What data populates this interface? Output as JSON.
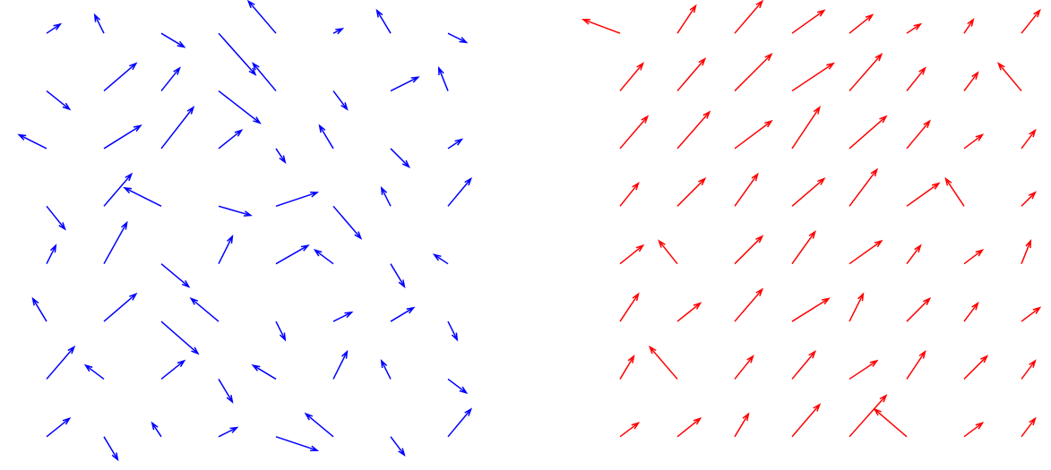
{
  "chart_data": [
    {
      "type": "quiver",
      "color": "#0000ff",
      "xlim": [
        0,
        8
      ],
      "ylim": [
        0,
        8
      ],
      "x": [
        0.5,
        1.5,
        2.5,
        3.5,
        4.5,
        5.5,
        6.5,
        7.5
      ],
      "y": [
        7.5,
        6.5,
        5.5,
        4.5,
        3.5,
        2.5,
        1.5,
        0.5
      ],
      "u": [
        [
          0.3,
          -0.2,
          0.5,
          0.8,
          -0.6,
          0.2,
          -0.3,
          0.4
        ],
        [
          0.5,
          0.7,
          0.4,
          0.9,
          -0.5,
          0.3,
          0.6,
          -0.2
        ],
        [
          -0.6,
          0.8,
          0.7,
          0.5,
          0.2,
          -0.3,
          0.4,
          0.3
        ],
        [
          0.4,
          0.6,
          -0.8,
          0.7,
          0.9,
          0.6,
          -0.2,
          0.5
        ],
        [
          0.2,
          0.5,
          0.6,
          0.3,
          0.7,
          -0.4,
          0.3,
          -0.3
        ],
        [
          -0.3,
          0.7,
          0.8,
          -0.6,
          0.2,
          0.4,
          0.5,
          0.2
        ],
        [
          0.6,
          -0.4,
          0.5,
          0.3,
          -0.5,
          0.3,
          -0.2,
          0.4
        ],
        [
          0.5,
          0.3,
          -0.2,
          0.4,
          0.9,
          -0.6,
          0.3,
          0.5
        ]
      ],
      "v": [
        [
          0.2,
          0.4,
          -0.3,
          -0.9,
          0.7,
          0.1,
          0.5,
          -0.2
        ],
        [
          -0.4,
          0.6,
          0.5,
          -0.7,
          0.6,
          -0.4,
          0.3,
          0.5
        ],
        [
          0.3,
          0.5,
          0.9,
          0.4,
          -0.3,
          0.5,
          -0.4,
          0.2
        ],
        [
          -0.5,
          0.7,
          0.4,
          -0.2,
          0.3,
          -0.7,
          0.4,
          0.6
        ],
        [
          0.4,
          0.9,
          -0.5,
          0.6,
          0.4,
          0.3,
          -0.5,
          0.2
        ],
        [
          0.5,
          0.6,
          -0.7,
          0.5,
          -0.4,
          0.2,
          0.3,
          -0.4
        ],
        [
          0.7,
          0.3,
          0.4,
          -0.5,
          0.3,
          0.6,
          0.4,
          -0.3
        ],
        [
          0.4,
          -0.5,
          0.3,
          0.2,
          -0.3,
          0.5,
          -0.4,
          0.6
        ]
      ]
    },
    {
      "type": "quiver",
      "color": "#ff0000",
      "xlim": [
        0,
        8
      ],
      "ylim": [
        0,
        8
      ],
      "x": [
        0.5,
        1.5,
        2.5,
        3.5,
        4.5,
        5.5,
        6.5,
        7.5
      ],
      "y": [
        7.5,
        6.5,
        5.5,
        4.5,
        3.5,
        2.5,
        1.5,
        0.5
      ],
      "u": [
        [
          -0.8,
          0.4,
          0.6,
          0.7,
          0.5,
          0.3,
          0.2,
          0.4
        ],
        [
          0.5,
          0.6,
          0.8,
          0.9,
          0.7,
          0.4,
          0.3,
          -0.5
        ],
        [
          0.6,
          0.7,
          0.8,
          0.6,
          0.8,
          0.5,
          0.4,
          0.3
        ],
        [
          0.4,
          0.6,
          0.5,
          0.7,
          0.6,
          0.7,
          -0.4,
          0.3
        ],
        [
          0.5,
          -0.4,
          0.6,
          0.5,
          0.7,
          0.3,
          0.4,
          0.2
        ],
        [
          0.4,
          0.5,
          0.6,
          0.8,
          0.3,
          0.5,
          0.3,
          0.4
        ],
        [
          0.3,
          -0.6,
          0.4,
          0.5,
          0.6,
          0.4,
          0.5,
          0.3
        ],
        [
          0.4,
          0.5,
          0.3,
          0.6,
          0.8,
          -0.7,
          0.4,
          0.3
        ]
      ],
      "v": [
        [
          0.3,
          0.6,
          0.7,
          0.5,
          0.4,
          0.2,
          0.3,
          0.5
        ],
        [
          0.6,
          0.7,
          0.8,
          0.6,
          0.8,
          0.5,
          0.4,
          0.6
        ],
        [
          0.7,
          0.8,
          0.6,
          0.9,
          0.7,
          0.6,
          0.3,
          0.4
        ],
        [
          0.5,
          0.6,
          0.7,
          0.6,
          0.8,
          0.5,
          0.6,
          0.3
        ],
        [
          0.4,
          0.5,
          0.6,
          0.7,
          0.5,
          0.4,
          0.3,
          0.5
        ],
        [
          0.6,
          0.4,
          0.7,
          0.5,
          0.6,
          0.5,
          0.4,
          0.3
        ],
        [
          0.5,
          0.7,
          0.5,
          0.6,
          0.4,
          0.6,
          0.5,
          0.4
        ],
        [
          0.3,
          0.4,
          0.5,
          0.7,
          0.9,
          0.6,
          0.3,
          0.4
        ]
      ]
    }
  ]
}
